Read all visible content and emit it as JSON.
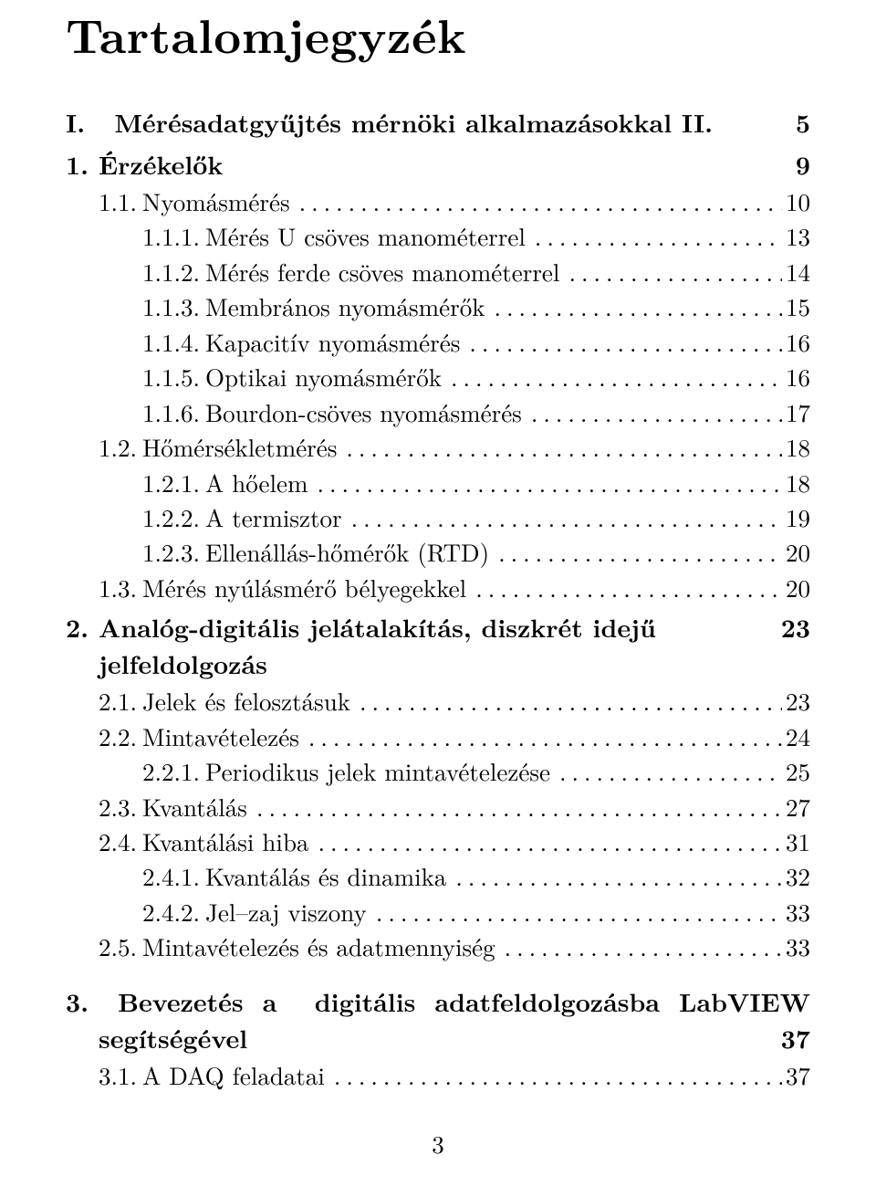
{
  "title": "Tartalomjegyzék",
  "footer_page": "3",
  "leaders": "........................................................................",
  "part": {
    "num": "I.",
    "title": "Mérésadatgyűjtés mérnöki alkalmazásokkal II.",
    "page": "5"
  },
  "chapters": [
    {
      "num": "1.",
      "title": "Érzékelők",
      "page": "9",
      "wrap": false,
      "entries": [
        {
          "level": 1,
          "num": "1.1.",
          "title": "Nyomásmérés",
          "page": "10"
        },
        {
          "level": 2,
          "num": "1.1.1.",
          "title": "Mérés U csöves manométerrel",
          "page": "13"
        },
        {
          "level": 2,
          "num": "1.1.2.",
          "title": "Mérés ferde csöves manométerrel",
          "page": "14"
        },
        {
          "level": 2,
          "num": "1.1.3.",
          "title": "Membrános nyomásmérők",
          "page": "15"
        },
        {
          "level": 2,
          "num": "1.1.4.",
          "title": "Kapacitív nyomásmérés",
          "page": "16"
        },
        {
          "level": 2,
          "num": "1.1.5.",
          "title": "Optikai nyomásmérők",
          "page": "16"
        },
        {
          "level": 2,
          "num": "1.1.6.",
          "title": "Bourdon-csöves nyomásmérés",
          "page": "17"
        },
        {
          "level": 1,
          "num": "1.2.",
          "title": "Hőmérsékletmérés",
          "page": "18"
        },
        {
          "level": 2,
          "num": "1.2.1.",
          "title": "A hőelem",
          "page": "18"
        },
        {
          "level": 2,
          "num": "1.2.2.",
          "title": "A termisztor",
          "page": "19"
        },
        {
          "level": 2,
          "num": "1.2.3.",
          "title": "Ellenállás-hőmérők (RTD)",
          "page": "20"
        },
        {
          "level": 1,
          "num": "1.3.",
          "title": "Mérés nyúlásmérő bélyegekkel",
          "page": "20"
        }
      ]
    },
    {
      "num": "2.",
      "title": "Analóg-digitális jelátalakítás, diszkrét idejű jelfeldolgozás",
      "page": "23",
      "wrap": false,
      "entries": [
        {
          "level": 1,
          "num": "2.1.",
          "title": "Jelek és felosztásuk",
          "page": "23"
        },
        {
          "level": 1,
          "num": "2.2.",
          "title": "Mintavételezés",
          "page": "24"
        },
        {
          "level": 2,
          "num": "2.2.1.",
          "title": "Periodikus jelek mintavételezése",
          "page": "25"
        },
        {
          "level": 1,
          "num": "2.3.",
          "title": "Kvantálás",
          "page": "27"
        },
        {
          "level": 1,
          "num": "2.4.",
          "title": "Kvantálási hiba",
          "page": "31"
        },
        {
          "level": 2,
          "num": "2.4.1.",
          "title": "Kvantálás és dinamika",
          "page": "32"
        },
        {
          "level": 2,
          "num": "2.4.2.",
          "title": "Jel–zaj viszony",
          "page": "33"
        },
        {
          "level": 1,
          "num": "2.5.",
          "title": "Mintavételezés és adatmennyiség",
          "page": "33"
        }
      ]
    },
    {
      "num": "3.",
      "title_line1": "Bevezetés   a   digitális   adatfeldolgozásba   LabVIEW",
      "title_line2": "segítségével",
      "page": "37",
      "wrap": true,
      "entries": [
        {
          "level": 1,
          "num": "3.1.",
          "title": "A DAQ feladatai",
          "page": "37"
        }
      ]
    }
  ]
}
